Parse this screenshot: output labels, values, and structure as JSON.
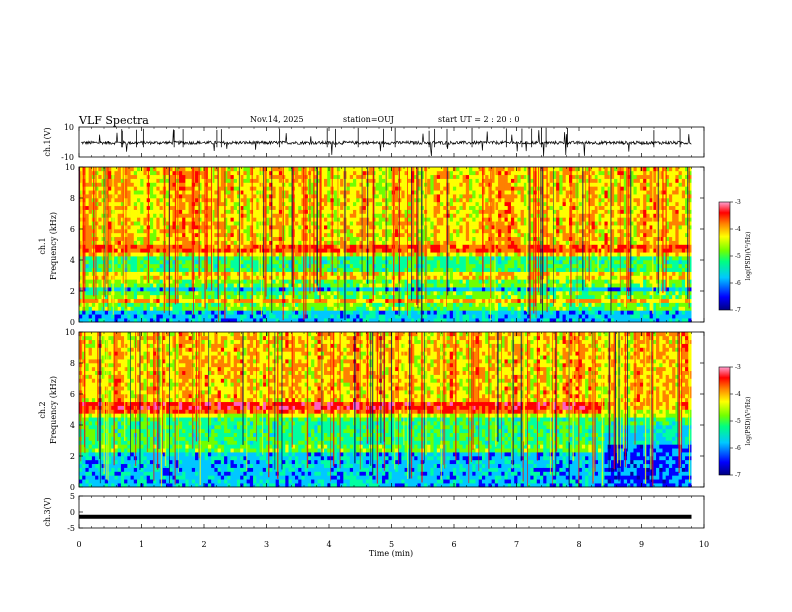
{
  "header": {
    "title": "VLF Spectra",
    "date": "Nov.14, 2025",
    "station": "station=OUJ",
    "start": "start  UT =   2 : 20 : 0"
  },
  "chart_data": [
    {
      "type": "line",
      "name": "ch1-waveform",
      "ylabel": "ch.1(V)",
      "ylim": [
        -10,
        10
      ],
      "yticks": [
        "10",
        "-10"
      ],
      "baseline": -0.5,
      "x_range": [
        0,
        9.8
      ]
    },
    {
      "type": "heatmap",
      "name": "ch1-spectrogram",
      "ylabel": "ch.1\nFrequency (kHz)",
      "ylabel_line1": "ch.1",
      "ylabel_line2": "Frequency (kHz)",
      "ylim": [
        0,
        10
      ],
      "yticks": [
        "0",
        "2",
        "4",
        "6",
        "8",
        "10"
      ],
      "bands_khz": [
        1.2,
        1.6,
        2.5,
        3.0,
        4.6
      ],
      "colorbar": {
        "label": "log(PSD)(V²/Hz)",
        "ticks": [
          "-3",
          "-4",
          "-5",
          "-6",
          "-7"
        ],
        "range": [
          -7,
          -3
        ]
      }
    },
    {
      "type": "heatmap",
      "name": "ch2-spectrogram",
      "ylabel_line1": "ch.2",
      "ylabel_line2": "Frequency (kHz)",
      "ylim": [
        0,
        10
      ],
      "yticks": [
        "0",
        "2",
        "4",
        "6",
        "8",
        "10"
      ],
      "bands_khz": [
        2.5,
        5.1
      ],
      "band_end_min": 8.4,
      "colorbar": {
        "label": "log(PSD)(V²/Hz)",
        "ticks": [
          "-3",
          "-4",
          "-5",
          "-6",
          "-7"
        ],
        "range": [
          -7,
          -3
        ]
      }
    },
    {
      "type": "line",
      "name": "ch3-signal",
      "ylabel": "ch.3(V)",
      "ylim": [
        -5,
        5
      ],
      "yticks": [
        "5",
        "0",
        "-5"
      ],
      "value": -1.5,
      "x_range": [
        0,
        9.8
      ]
    }
  ],
  "xaxis": {
    "label": "Time (min)",
    "range": [
      0,
      10
    ],
    "ticks": [
      "0",
      "1",
      "2",
      "3",
      "4",
      "5",
      "6",
      "7",
      "8",
      "9",
      "10"
    ]
  },
  "colors": {
    "frame": "#000000",
    "colormap": [
      "#0000a0",
      "#0000ff",
      "#00c8ff",
      "#00ffa0",
      "#70ff00",
      "#ffff00",
      "#ff8000",
      "#ff0000",
      "#ff60c0"
    ]
  }
}
